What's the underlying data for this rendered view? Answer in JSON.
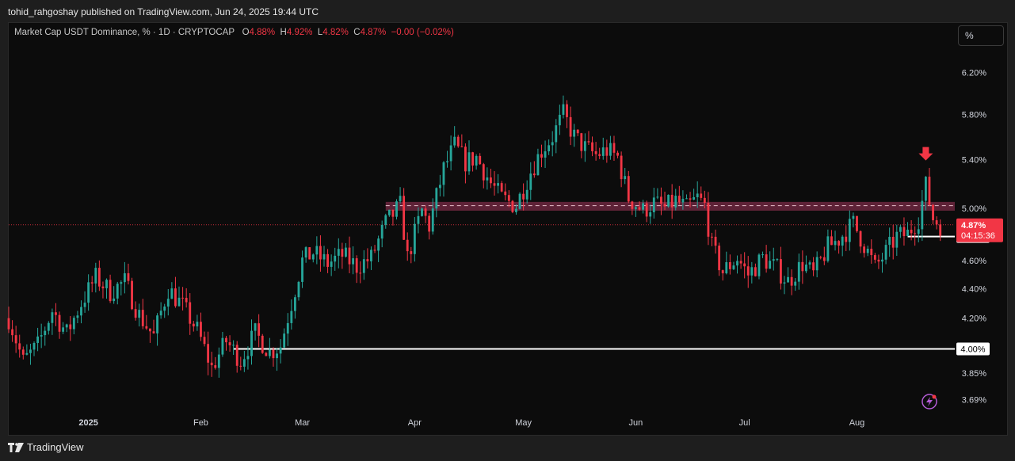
{
  "header": {
    "published": "tohid_rahgoshay published on TradingView.com, Jun 24, 2025 19:44 UTC"
  },
  "legend": {
    "symbol": "Market Cap USDT Dominance, % · 1D · CRYPTOCAP",
    "o_label": "O",
    "o": "4.88%",
    "h_label": "H",
    "h": "4.92%",
    "l_label": "L",
    "l": "4.82%",
    "c_label": "C",
    "c": "4.87%",
    "change": "−0.00 (−0.02%)"
  },
  "unit_button": "%",
  "brand": {
    "name": "TradingView",
    "icon": "tradingview-logo-icon"
  },
  "colors": {
    "up": "#26a69a",
    "down": "#f23645",
    "zone": "#7a2a45",
    "line": "#ffffff",
    "background": "#0c0c0c"
  },
  "chart_data": {
    "type": "candlestick",
    "y_scale": "log",
    "ylim": [
      3.62,
      6.45
    ],
    "y_ticks": [
      "6.20%",
      "5.80%",
      "5.40%",
      "5.00%",
      "4.60%",
      "4.40%",
      "4.20%",
      "3.85%",
      "3.69%"
    ],
    "y_tick_values": [
      6.2,
      5.8,
      5.4,
      5.0,
      4.6,
      4.4,
      4.2,
      3.85,
      3.69
    ],
    "x_range": [
      "2024-12-10",
      "2025-08-28"
    ],
    "x_ticks": [
      {
        "date": "2025-01-01",
        "label": "2025"
      },
      {
        "date": "2025-02-01",
        "label": "Feb"
      },
      {
        "date": "2025-03-01",
        "label": "Mar"
      },
      {
        "date": "2025-04-01",
        "label": "Apr"
      },
      {
        "date": "2025-05-01",
        "label": "May"
      },
      {
        "date": "2025-06-01",
        "label": "Jun"
      },
      {
        "date": "2025-07-01",
        "label": "Jul"
      },
      {
        "date": "2025-08-01",
        "label": "Aug"
      }
    ],
    "price_series": [
      [
        "2024-12-10",
        4.2
      ],
      [
        "2024-12-14",
        3.92
      ],
      [
        "2024-12-18",
        4.02
      ],
      [
        "2024-12-22",
        4.25
      ],
      [
        "2024-12-26",
        4.1
      ],
      [
        "2024-12-30",
        4.3
      ],
      [
        "2025-01-03",
        4.48
      ],
      [
        "2025-01-07",
        4.38
      ],
      [
        "2025-01-11",
        4.45
      ],
      [
        "2025-01-15",
        4.22
      ],
      [
        "2025-01-19",
        4.08
      ],
      [
        "2025-01-23",
        4.4
      ],
      [
        "2025-01-27",
        4.28
      ],
      [
        "2025-01-31",
        4.12
      ],
      [
        "2025-02-04",
        3.88
      ],
      [
        "2025-02-08",
        4.05
      ],
      [
        "2025-02-12",
        3.93
      ],
      [
        "2025-02-16",
        4.1
      ],
      [
        "2025-02-20",
        3.98
      ],
      [
        "2025-02-23",
        4.02
      ],
      [
        "2025-02-26",
        4.3
      ],
      [
        "2025-03-01",
        4.6
      ],
      [
        "2025-03-04",
        4.66
      ],
      [
        "2025-03-08",
        4.58
      ],
      [
        "2025-03-12",
        4.64
      ],
      [
        "2025-03-16",
        4.56
      ],
      [
        "2025-03-20",
        4.62
      ],
      [
        "2025-03-24",
        4.88
      ],
      [
        "2025-03-28",
        5.02
      ],
      [
        "2025-03-30",
        4.62
      ],
      [
        "2025-04-03",
        4.98
      ],
      [
        "2025-04-05",
        4.86
      ],
      [
        "2025-04-09",
        5.32
      ],
      [
        "2025-04-12",
        5.52
      ],
      [
        "2025-04-15",
        5.38
      ],
      [
        "2025-04-18",
        5.42
      ],
      [
        "2025-04-22",
        5.2
      ],
      [
        "2025-04-25",
        5.08
      ],
      [
        "2025-04-29",
        5.02
      ],
      [
        "2025-05-03",
        5.3
      ],
      [
        "2025-05-06",
        5.48
      ],
      [
        "2025-05-09",
        5.6
      ],
      [
        "2025-05-12",
        5.8
      ],
      [
        "2025-05-15",
        5.6
      ],
      [
        "2025-05-18",
        5.5
      ],
      [
        "2025-05-21",
        5.44
      ],
      [
        "2025-05-24",
        5.48
      ],
      [
        "2025-05-27",
        5.42
      ],
      [
        "2025-05-30",
        5.08
      ],
      [
        "2025-06-03",
        4.98
      ],
      [
        "2025-06-06",
        5.04
      ],
      [
        "2025-06-09",
        5.0
      ],
      [
        "2025-06-12",
        5.06
      ],
      [
        "2025-06-15",
        5.0
      ],
      [
        "2025-06-18",
        5.08
      ],
      [
        "2025-06-20",
        5.02
      ],
      [
        "2025-06-22",
        4.7
      ],
      [
        "2025-06-25",
        4.52
      ],
      [
        "2025-06-29",
        4.62
      ],
      [
        "2025-07-02",
        4.5
      ],
      [
        "2025-07-06",
        4.62
      ],
      [
        "2025-07-10",
        4.54
      ],
      [
        "2025-07-13",
        4.45
      ],
      [
        "2025-07-17",
        4.58
      ],
      [
        "2025-07-20",
        4.5
      ],
      [
        "2025-07-24",
        4.7
      ],
      [
        "2025-07-27",
        4.76
      ],
      [
        "2025-07-31",
        4.88
      ],
      [
        "2025-08-03",
        4.72
      ],
      [
        "2025-08-06",
        4.55
      ],
      [
        "2025-08-09",
        4.66
      ],
      [
        "2025-08-12",
        4.78
      ],
      [
        "2025-08-15",
        4.8
      ],
      [
        "2025-08-18",
        4.92
      ],
      [
        "2025-08-20",
        5.18
      ],
      [
        "2025-08-22",
        4.92
      ],
      [
        "2025-08-24",
        4.87
      ]
    ],
    "levels": [
      {
        "value": 4.78,
        "label": "4.78%"
      },
      {
        "value": 4.0,
        "label": "4.00%"
      }
    ],
    "resistance_zone": [
      4.98,
      5.05
    ],
    "current_price": {
      "value": 4.87,
      "label": "4.87%",
      "countdown": "04:15:36"
    },
    "dashed_level": 5.02,
    "extra_label": {
      "value": 5.0,
      "label": "5.00%"
    }
  }
}
